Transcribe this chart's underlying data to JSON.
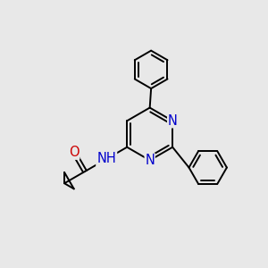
{
  "bg_color": "#e8e8e8",
  "bond_color": "#000000",
  "N_color": "#0000cc",
  "O_color": "#cc0000",
  "line_width": 1.4,
  "dbo": 0.13,
  "font_size": 10.5,
  "fig_size": [
    3.0,
    3.0
  ],
  "dpi": 100,
  "xlim": [
    0,
    10
  ],
  "ylim": [
    0,
    10
  ]
}
